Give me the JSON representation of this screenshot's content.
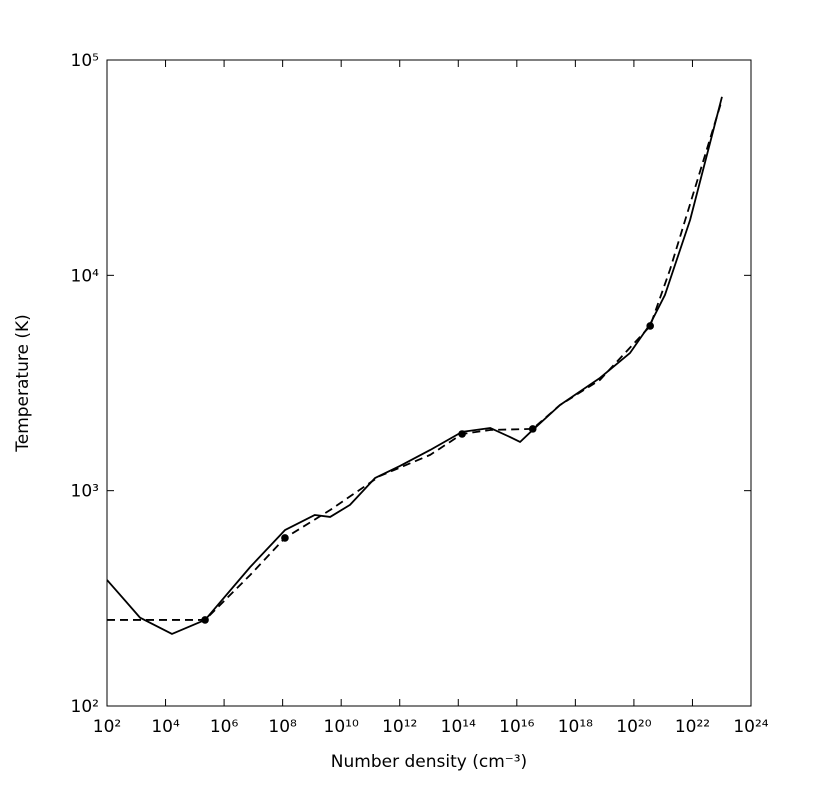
{
  "chart_data": {
    "type": "line",
    "xlabel": "Number density (cm⁻³)",
    "ylabel": "Temperature (K)",
    "xscale": "log",
    "yscale": "log",
    "xlim": [
      100.0,
      1e+24
    ],
    "ylim": [
      100.0,
      100000.0
    ],
    "xticks": [
      {
        "value": 100.0,
        "label": "10²"
      },
      {
        "value": 10000.0,
        "label": "10⁴"
      },
      {
        "value": 1000000.0,
        "label": "10⁶"
      },
      {
        "value": 100000000.0,
        "label": "10⁸"
      },
      {
        "value": 10000000000.0,
        "label": "10¹⁰"
      },
      {
        "value": 1000000000000.0,
        "label": "10¹²"
      },
      {
        "value": 100000000000000.0,
        "label": "10¹⁴"
      },
      {
        "value": 1e+16,
        "label": "10¹⁶"
      },
      {
        "value": 1e+18,
        "label": "10¹⁸"
      },
      {
        "value": 1e+20,
        "label": "10²⁰"
      },
      {
        "value": 1e+22,
        "label": "10²²"
      },
      {
        "value": 1e+24,
        "label": "10²⁴"
      }
    ],
    "yticks": [
      {
        "value": 100.0,
        "label": "10²"
      },
      {
        "value": 1000.0,
        "label": "10³"
      },
      {
        "value": 10000.0,
        "label": "10⁴"
      },
      {
        "value": 100000.0,
        "label": "10⁵"
      }
    ],
    "grid": false,
    "series": [
      {
        "color": "#000000",
        "style": "solid",
        "x": [
          100.0,
          1350.0,
          16600.0,
          224000.0,
          7800000.0,
          120000000.0,
          1260000000.0,
          4200000000.0,
          20000000000.0,
          145000000000.0,
          1020000000000.0,
          11000000000000.0,
          135000000000000.0,
          1230000000000000.0,
          5900000000000000.0,
          1.29e+16,
          3.5e+16,
          3e+17,
          6.9e+18,
          7.4e+19,
          3.6e+20,
          1.15e+21,
          8.3e+21,
          1.02e+23
        ],
        "values": [
          385,
          257,
          216,
          251,
          442,
          656,
          771,
          755,
          859,
          1146,
          1303,
          1545,
          1875,
          1955,
          1774,
          1683,
          1914,
          2500,
          3337,
          4363,
          5943,
          8110,
          18070,
          67450
        ]
      },
      {
        "color": "#000000",
        "style": "dashed",
        "x": [
          100.0,
          224000.0,
          7800000.0,
          120000000.0,
          4200000000.0,
          210000000000.0,
          11000000000000.0,
          135000000000000.0,
          1230000000000000.0,
          3.5e+16,
          3e+17,
          6.9e+18,
          3.6e+20,
          1.7e+21,
          1.02e+23
        ],
        "values": [
          251,
          251,
          406,
          603,
          813,
          1170,
          1466,
          1833,
          1914,
          1936,
          2500,
          3266,
          5821,
          10600,
          65300
        ]
      },
      {
        "color": "#000000",
        "style": "markers",
        "x": [
          224000.0,
          120000000.0,
          135000000000000.0,
          3.5e+16,
          3.6e+20
        ],
        "values": [
          251,
          603,
          1833,
          1936,
          5821
        ]
      }
    ]
  }
}
